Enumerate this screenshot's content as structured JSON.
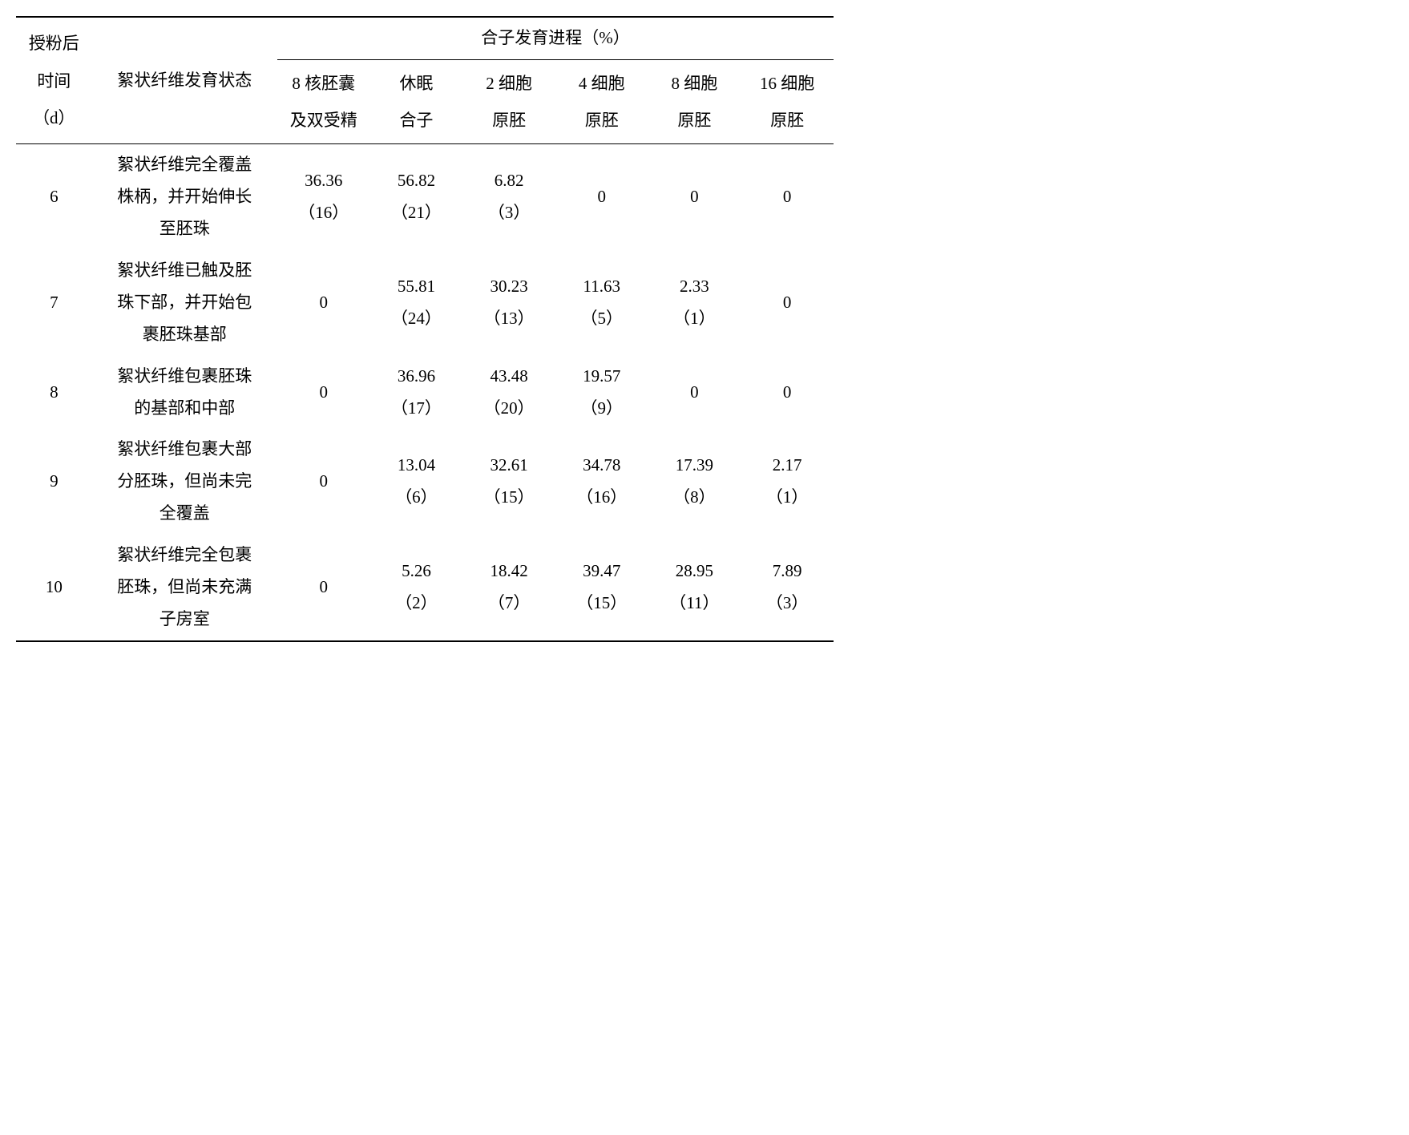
{
  "header": {
    "col_day": "授粉后\n时间\n（d）",
    "col_fiber_state": "絮状纤维发育状态",
    "group_title": "合子发育进程（%）",
    "stages": [
      "8 核胚囊\n及双受精",
      "休眠\n合子",
      "2 细胞\n原胚",
      "4 细胞\n原胚",
      "8 细胞\n原胚",
      "16 细胞\n原胚"
    ]
  },
  "rows": [
    {
      "day": "6",
      "fiber": "絮状纤维完全覆盖\n株柄，并开始伸长\n至胚珠",
      "v": [
        {
          "p": "36.36",
          "n": "（16）"
        },
        {
          "p": "56.82",
          "n": "（21）"
        },
        {
          "p": "6.82",
          "n": "（3）"
        },
        {
          "p": "0",
          "n": ""
        },
        {
          "p": "0",
          "n": ""
        },
        {
          "p": "0",
          "n": ""
        }
      ]
    },
    {
      "day": "7",
      "fiber": "絮状纤维已触及胚\n珠下部，并开始包\n裹胚珠基部",
      "v": [
        {
          "p": "0",
          "n": ""
        },
        {
          "p": "55.81",
          "n": "（24）"
        },
        {
          "p": "30.23",
          "n": "（13）"
        },
        {
          "p": "11.63",
          "n": "（5）"
        },
        {
          "p": "2.33",
          "n": "（1）"
        },
        {
          "p": "0",
          "n": ""
        }
      ]
    },
    {
      "day": "8",
      "fiber": "絮状纤维包裹胚珠\n的基部和中部",
      "v": [
        {
          "p": "0",
          "n": ""
        },
        {
          "p": "36.96",
          "n": "（17）"
        },
        {
          "p": "43.48",
          "n": "（20）"
        },
        {
          "p": "19.57",
          "n": "（9）"
        },
        {
          "p": "0",
          "n": ""
        },
        {
          "p": "0",
          "n": ""
        }
      ]
    },
    {
      "day": "9",
      "fiber": "絮状纤维包裹大部\n分胚珠，但尚未完\n全覆盖",
      "v": [
        {
          "p": "0",
          "n": ""
        },
        {
          "p": "13.04",
          "n": "（6）"
        },
        {
          "p": "32.61",
          "n": "（15）"
        },
        {
          "p": "34.78",
          "n": "（16）"
        },
        {
          "p": "17.39",
          "n": "（8）"
        },
        {
          "p": "2.17",
          "n": "（1）"
        }
      ]
    },
    {
      "day": "10",
      "fiber": "絮状纤维完全包裹\n胚珠，但尚未充满\n子房室",
      "v": [
        {
          "p": "0",
          "n": ""
        },
        {
          "p": "5.26",
          "n": "（2）"
        },
        {
          "p": "18.42",
          "n": "（7）"
        },
        {
          "p": "39.47",
          "n": "（15）"
        },
        {
          "p": "28.95",
          "n": "（11）"
        },
        {
          "p": "7.89",
          "n": "（3）"
        }
      ]
    }
  ]
}
